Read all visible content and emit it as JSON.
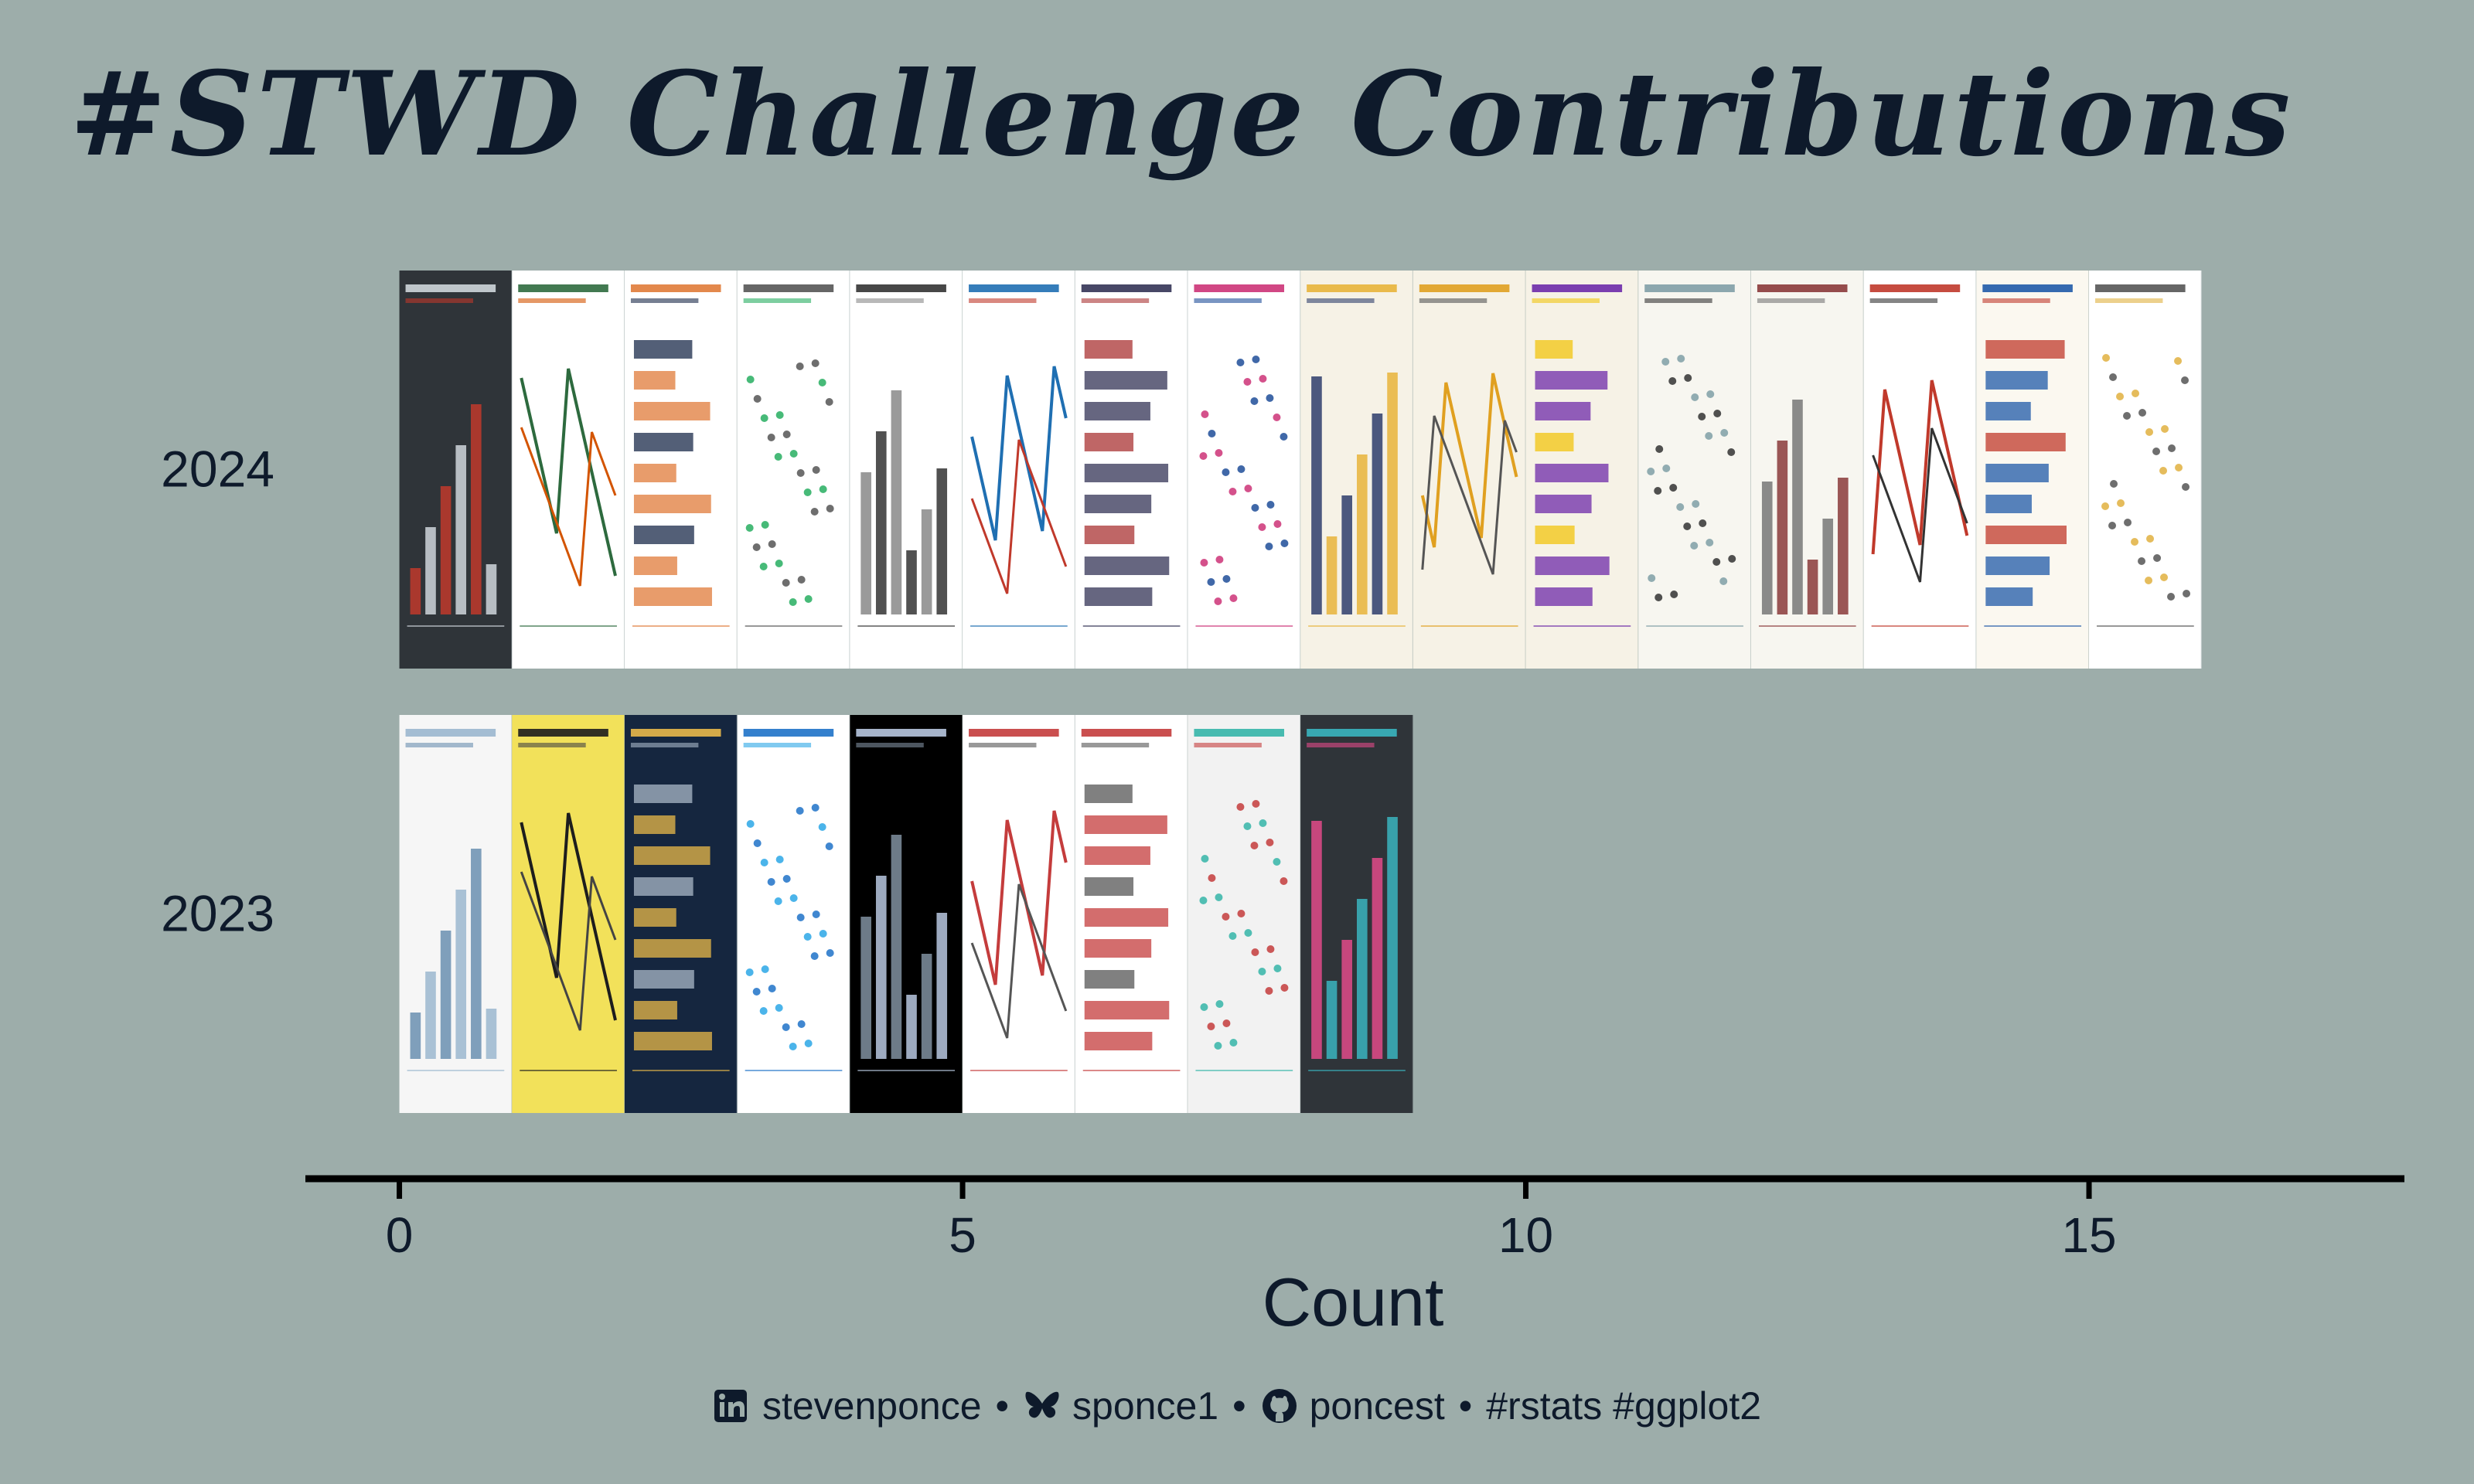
{
  "title": "#STWD Challenge Contributions",
  "caption": {
    "linkedin_icon": "linkedin-icon",
    "linkedin": "stevenponce",
    "bluesky_icon": "butterfly-icon",
    "bluesky": "sponce1",
    "github_icon": "github-icon",
    "github": "poncest",
    "tags": "#rstats #ggplot2",
    "separator": "•"
  },
  "colors": {
    "background": "#9dadaa",
    "text": "#0e1a2b",
    "axis": "#000000"
  },
  "chart_data": {
    "type": "bar",
    "orientation": "horizontal",
    "title": "#STWD Challenge Contributions",
    "xlabel": "Count",
    "ylabel": "",
    "categories": [
      "2024",
      "2023"
    ],
    "values": [
      16,
      9
    ],
    "xlim": [
      -0.8,
      17.8
    ],
    "xticks": [
      0,
      5,
      10,
      15
    ],
    "grid": false,
    "bar_style": "each unit is a thumbnail image of a chart contribution"
  }
}
